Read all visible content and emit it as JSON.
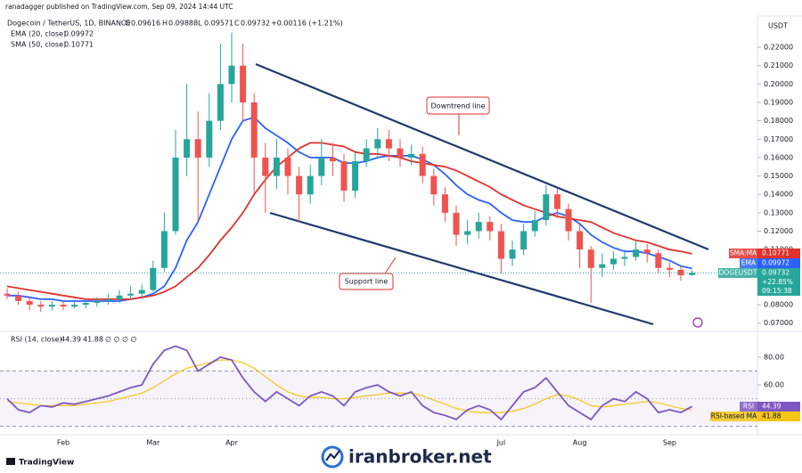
{
  "chart_data": {
    "type": "candlestick",
    "publisher": "ranadagger published on TradingView.com, Sep 09, 2024 14:44 UTC",
    "title": "Dogecoin / TetherUS, 1D, BINANCE",
    "ohlc_labels": [
      "O",
      "H",
      "L",
      "C"
    ],
    "change": "+0.00116 (+1.21%)",
    "currency": "USDT",
    "categories": [
      null,
      null,
      null,
      null,
      null,
      "Feb",
      null,
      null,
      null,
      null,
      null,
      null,
      null,
      "Mar",
      null,
      null,
      null,
      null,
      null,
      null,
      "Apr",
      null,
      null,
      null,
      null,
      null,
      null,
      null,
      null,
      null,
      null,
      null,
      null,
      null,
      null,
      null,
      null,
      null,
      null,
      null,
      null,
      null,
      null,
      null,
      "Jul",
      null,
      null,
      null,
      null,
      null,
      null,
      "Aug",
      null,
      null,
      null,
      null,
      null,
      null,
      null,
      "Sep",
      null,
      null
    ],
    "up_color": "#26a69a",
    "down_color": "#ef5350",
    "open": [
      0.086,
      0.085,
      0.082,
      0.08,
      0.079,
      0.08,
      0.079,
      0.08,
      0.081,
      0.082,
      0.083,
      0.085,
      0.086,
      0.088,
      0.1,
      0.12,
      0.16,
      0.17,
      0.16,
      0.18,
      0.2,
      0.21,
      0.19,
      0.16,
      0.15,
      0.16,
      0.15,
      0.14,
      0.15,
      0.16,
      0.158,
      0.142,
      0.158,
      0.165,
      0.17,
      0.165,
      0.16,
      0.162,
      0.15,
      0.14,
      0.13,
      0.118,
      0.12,
      0.125,
      0.12,
      0.105,
      0.11,
      0.12,
      0.126,
      0.14,
      0.132,
      0.12,
      0.11,
      0.1,
      0.102,
      0.105,
      0.106,
      0.11,
      0.108,
      0.1,
      0.099,
      0.09616
    ],
    "high": [
      0.089,
      0.087,
      0.084,
      0.082,
      0.082,
      0.082,
      0.082,
      0.083,
      0.084,
      0.086,
      0.088,
      0.09,
      0.091,
      0.104,
      0.13,
      0.175,
      0.2,
      0.185,
      0.195,
      0.222,
      0.228,
      0.222,
      0.195,
      0.168,
      0.17,
      0.165,
      0.155,
      0.156,
      0.17,
      0.168,
      0.162,
      0.163,
      0.17,
      0.176,
      0.175,
      0.17,
      0.167,
      0.166,
      0.154,
      0.144,
      0.134,
      0.126,
      0.13,
      0.128,
      0.124,
      0.115,
      0.124,
      0.131,
      0.145,
      0.143,
      0.135,
      0.124,
      0.112,
      0.108,
      0.109,
      0.11,
      0.115,
      0.113,
      0.11,
      0.103,
      0.101,
      0.09888
    ],
    "low": [
      0.083,
      0.08,
      0.077,
      0.076,
      0.077,
      0.077,
      0.078,
      0.078,
      0.079,
      0.08,
      0.081,
      0.083,
      0.084,
      0.087,
      0.098,
      0.118,
      0.15,
      0.125,
      0.155,
      0.175,
      0.19,
      0.18,
      0.14,
      0.13,
      0.143,
      0.14,
      0.125,
      0.135,
      0.145,
      0.15,
      0.136,
      0.138,
      0.155,
      0.16,
      0.158,
      0.155,
      0.156,
      0.146,
      0.134,
      0.125,
      0.112,
      0.113,
      0.116,
      0.115,
      0.097,
      0.101,
      0.107,
      0.117,
      0.123,
      0.127,
      0.115,
      0.1,
      0.081,
      0.095,
      0.099,
      0.101,
      0.104,
      0.103,
      0.097,
      0.095,
      0.093,
      0.09571
    ],
    "close": [
      0.085,
      0.082,
      0.08,
      0.079,
      0.08,
      0.079,
      0.08,
      0.081,
      0.082,
      0.083,
      0.085,
      0.086,
      0.088,
      0.1,
      0.12,
      0.16,
      0.17,
      0.16,
      0.18,
      0.2,
      0.21,
      0.19,
      0.16,
      0.15,
      0.16,
      0.15,
      0.14,
      0.15,
      0.16,
      0.158,
      0.142,
      0.158,
      0.165,
      0.17,
      0.165,
      0.16,
      0.162,
      0.15,
      0.14,
      0.13,
      0.118,
      0.12,
      0.125,
      0.12,
      0.105,
      0.11,
      0.12,
      0.126,
      0.14,
      0.132,
      0.12,
      0.11,
      0.1,
      0.102,
      0.105,
      0.106,
      0.11,
      0.108,
      0.1,
      0.099,
      0.096,
      0.09732
    ],
    "lines": [
      {
        "name": "EMA (20, close)",
        "tag": "EMA",
        "color": "#2962ff",
        "values": [
          0.085,
          0.085,
          0.084,
          0.083,
          0.083,
          0.082,
          0.082,
          0.082,
          0.082,
          0.082,
          0.082,
          0.083,
          0.084,
          0.086,
          0.09,
          0.1,
          0.115,
          0.125,
          0.14,
          0.155,
          0.17,
          0.18,
          0.182,
          0.176,
          0.172,
          0.168,
          0.163,
          0.16,
          0.16,
          0.16,
          0.157,
          0.157,
          0.158,
          0.16,
          0.161,
          0.161,
          0.161,
          0.159,
          0.156,
          0.151,
          0.145,
          0.14,
          0.137,
          0.135,
          0.13,
          0.126,
          0.125,
          0.125,
          0.128,
          0.13,
          0.128,
          0.124,
          0.118,
          0.114,
          0.111,
          0.109,
          0.109,
          0.108,
          0.106,
          0.104,
          0.101,
          0.09972
        ]
      },
      {
        "name": "SMA (50, close)",
        "tag": "SMA:MA",
        "color": "#e0312c",
        "values": [
          0.09,
          0.089,
          0.088,
          0.087,
          0.086,
          0.085,
          0.084,
          0.083,
          0.083,
          0.083,
          0.083,
          0.083,
          0.084,
          0.085,
          0.087,
          0.09,
          0.095,
          0.1,
          0.107,
          0.115,
          0.122,
          0.13,
          0.14,
          0.148,
          0.155,
          0.16,
          0.165,
          0.168,
          0.168,
          0.167,
          0.166,
          0.163,
          0.162,
          0.162,
          0.161,
          0.16,
          0.158,
          0.157,
          0.156,
          0.155,
          0.153,
          0.15,
          0.147,
          0.144,
          0.14,
          0.137,
          0.134,
          0.132,
          0.13,
          0.128,
          0.127,
          0.126,
          0.125,
          0.122,
          0.119,
          0.117,
          0.115,
          0.114,
          0.112,
          0.11,
          0.109,
          0.10771
        ]
      }
    ],
    "symbol_tag": "DOGEUSDT",
    "change_pct": "+22.85%",
    "countdown": "09:15:38",
    "ylim": [
      0.066,
      0.236
    ],
    "yticks": [
      {
        "value": 0.07,
        "label": "0.07000"
      },
      {
        "value": 0.08,
        "label": "0.08000"
      },
      {
        "value": 0.09,
        "label": "0.09000"
      },
      {
        "value": 0.1,
        "label": "0.10000"
      },
      {
        "value": 0.11,
        "label": "0.11000"
      },
      {
        "value": 0.12,
        "label": "0.12000"
      },
      {
        "value": 0.13,
        "label": "0.13000"
      },
      {
        "value": 0.14,
        "label": "0.14000"
      },
      {
        "value": 0.15,
        "label": "0.15000"
      },
      {
        "value": 0.16,
        "label": "0.16000"
      },
      {
        "value": 0.17,
        "label": "0.17000"
      },
      {
        "value": 0.18,
        "label": "0.18000"
      },
      {
        "value": 0.19,
        "label": "0.19000"
      },
      {
        "value": 0.2,
        "label": "0.20000"
      },
      {
        "value": 0.21,
        "label": "0.21000"
      },
      {
        "value": 0.22,
        "label": "0.22000"
      }
    ],
    "annotations": [
      "Downtrend line",
      "Support line"
    ],
    "rsi": {
      "name": "RSI (14, close)",
      "tag": "RSI",
      "color": "#7e57c2",
      "values": [
        50,
        42,
        40,
        45,
        44,
        47,
        46,
        48,
        50,
        52,
        55,
        58,
        60,
        75,
        85,
        88,
        85,
        70,
        75,
        80,
        78,
        65,
        55,
        48,
        55,
        50,
        45,
        52,
        55,
        52,
        45,
        55,
        58,
        60,
        55,
        52,
        55,
        45,
        40,
        38,
        35,
        42,
        45,
        42,
        35,
        45,
        55,
        58,
        65,
        55,
        45,
        40,
        35,
        45,
        50,
        48,
        55,
        50,
        40,
        42,
        40,
        44.39
      ],
      "ma_name": "RSI-based MA",
      "ma_color": "#f5c518",
      "ma_values": [
        48,
        47,
        46,
        45,
        45,
        45,
        45,
        46,
        47,
        48,
        50,
        52,
        54,
        58,
        63,
        68,
        72,
        74,
        76,
        78,
        78,
        76,
        72,
        66,
        60,
        55,
        52,
        51,
        51,
        50,
        50,
        51,
        52,
        53,
        54,
        54,
        54,
        52,
        49,
        46,
        43,
        41,
        40,
        40,
        40,
        41,
        43,
        46,
        50,
        53,
        52,
        49,
        45,
        44,
        45,
        46,
        47,
        48,
        47,
        45,
        43,
        41.88
      ],
      "extra": "∅ ∅ ∅ ∅",
      "levels": [
        30,
        50,
        70
      ],
      "ylim": [
        24,
        97.4
      ],
      "yticks": [
        {
          "value": 80,
          "label": "80.00"
        },
        {
          "value": 60,
          "label": "60.00"
        }
      ]
    },
    "footer_brand": "TradingView",
    "watermark": "iranbroker.net"
  }
}
